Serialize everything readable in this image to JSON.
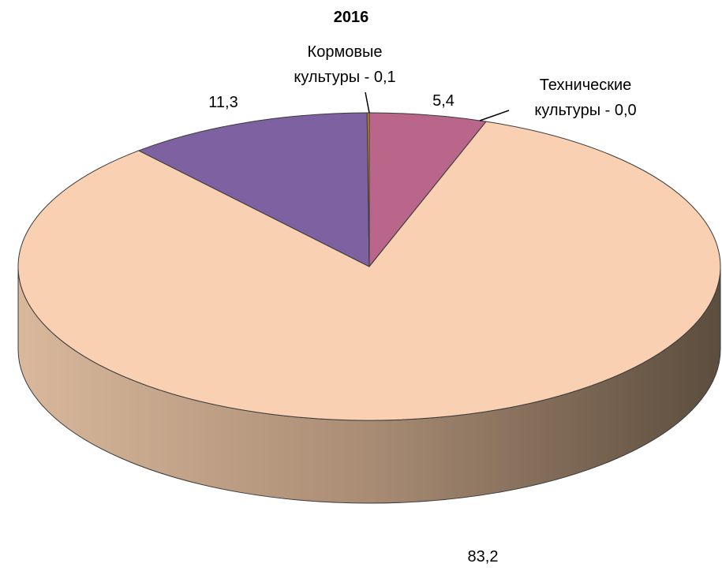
{
  "chart_data": {
    "type": "pie",
    "title": "2016",
    "values": [
      5.4,
      0.0,
      83.2,
      11.3,
      0.1
    ],
    "value_labels": [
      "5,4",
      "Технические\nкультуры - 0,0",
      "83,2",
      "11,3",
      "Кормовые\nкультуры - 0,1"
    ],
    "colors": [
      "#b9668a",
      "#6f8fc0",
      "#f9d0b2",
      "#7e61a0",
      "#c8861e"
    ]
  }
}
